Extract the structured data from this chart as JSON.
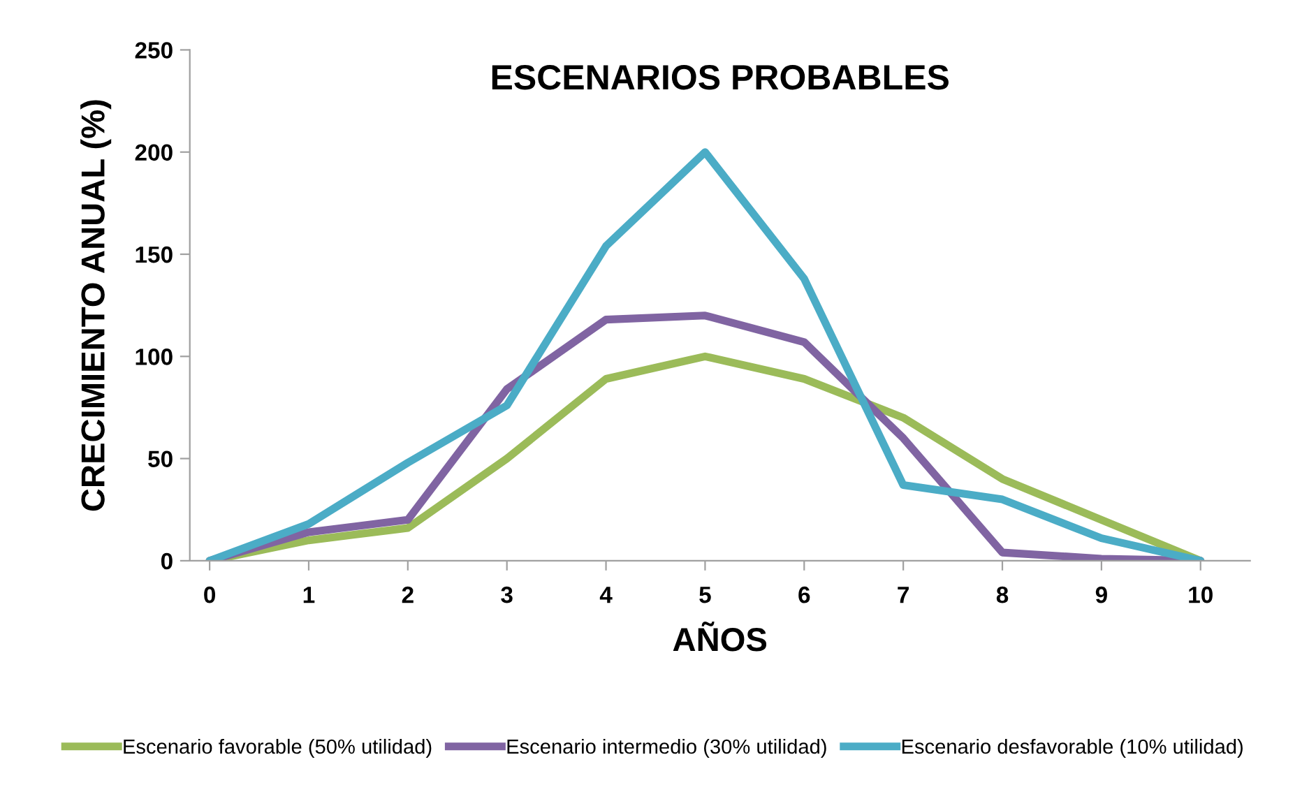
{
  "chart_data": {
    "type": "line",
    "title": "ESCENARIOS PROBABLES",
    "xlabel": "AÑOS",
    "ylabel": "CRECIMIENTO ANUAL (%)",
    "x": [
      0,
      1,
      2,
      3,
      4,
      5,
      6,
      7,
      8,
      9,
      10
    ],
    "xlim": [
      -0.2,
      10.5
    ],
    "xticks": [
      0,
      1,
      2,
      3,
      4,
      5,
      6,
      7,
      8,
      9,
      10
    ],
    "ylim": [
      0,
      250
    ],
    "yticks": [
      0,
      50,
      100,
      150,
      200,
      250
    ],
    "grid": false,
    "legend": "bottom",
    "marker": "none",
    "line_style": "solid",
    "series": [
      {
        "name": "Escenario favorable (50% utilidad)",
        "color": "#9bbb59",
        "values": [
          0,
          10,
          16,
          50,
          89,
          100,
          89,
          70,
          40,
          20,
          0
        ]
      },
      {
        "name": "Escenario intermedio (30% utilidad)",
        "color": "#8064a2",
        "values": [
          0,
          14,
          20,
          84,
          118,
          120,
          107,
          60,
          4,
          1,
          0
        ]
      },
      {
        "name": "Escenario desfavorable (10% utilidad)",
        "color": "#4bacc6",
        "values": [
          0,
          18,
          48,
          76,
          154,
          200,
          138,
          37,
          30,
          11,
          0
        ]
      }
    ]
  }
}
